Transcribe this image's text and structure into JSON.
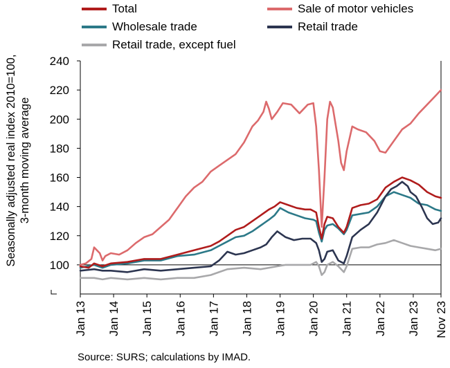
{
  "chart_data": {
    "type": "line",
    "ylabel_line1": "Seasonally adjusted real index 2010=100,",
    "ylabel_line2": "3-month moving average",
    "source": "Source: SURS; calculations by IMAD.",
    "ylim": [
      80,
      240
    ],
    "yticks": [
      100,
      120,
      140,
      160,
      180,
      200,
      220,
      240
    ],
    "ytick_labels": [
      "100",
      "120",
      "140",
      "160",
      "180",
      "200",
      "220",
      "240"
    ],
    "xlim": [
      "2013-01",
      "2023-11"
    ],
    "xticks": [
      "2013-01",
      "2014-01",
      "2015-01",
      "2016-01",
      "2017-01",
      "2018-01",
      "2019-01",
      "2020-01",
      "2021-01",
      "2022-01",
      "2023-01",
      "2023-11"
    ],
    "xtick_labels": [
      "Jan 13",
      "Jan 14",
      "Jan 15",
      "Jan 16",
      "Jan 17",
      "Jan 18",
      "Jan 19",
      "Jan 20",
      "Jan 21",
      "Jan 22",
      "Jan 23",
      "Nov 23"
    ],
    "reference_line": 100,
    "grid": false,
    "legend_position": "top",
    "series": [
      {
        "name": "Sale of motor vehicles",
        "color": "#dc6a6c",
        "points": [
          [
            "2013-01",
            100
          ],
          [
            "2013-03",
            101
          ],
          [
            "2013-05",
            104
          ],
          [
            "2013-06",
            112
          ],
          [
            "2013-07",
            110
          ],
          [
            "2013-08",
            108
          ],
          [
            "2013-09",
            103
          ],
          [
            "2013-10",
            106
          ],
          [
            "2013-12",
            108
          ],
          [
            "2014-03",
            107
          ],
          [
            "2014-06",
            110
          ],
          [
            "2014-09",
            115
          ],
          [
            "2014-12",
            119
          ],
          [
            "2015-03",
            121
          ],
          [
            "2015-06",
            126
          ],
          [
            "2015-09",
            131
          ],
          [
            "2015-12",
            139
          ],
          [
            "2016-03",
            147
          ],
          [
            "2016-06",
            153
          ],
          [
            "2016-09",
            157
          ],
          [
            "2016-12",
            164
          ],
          [
            "2017-03",
            168
          ],
          [
            "2017-06",
            172
          ],
          [
            "2017-09",
            176
          ],
          [
            "2017-12",
            184
          ],
          [
            "2018-03",
            195
          ],
          [
            "2018-05",
            199
          ],
          [
            "2018-07",
            205
          ],
          [
            "2018-08",
            212
          ],
          [
            "2018-09",
            207
          ],
          [
            "2018-10",
            200
          ],
          [
            "2018-12",
            205
          ],
          [
            "2019-02",
            211
          ],
          [
            "2019-05",
            210
          ],
          [
            "2019-08",
            204
          ],
          [
            "2019-11",
            210
          ],
          [
            "2020-01",
            211
          ],
          [
            "2020-02",
            195
          ],
          [
            "2020-03",
            165
          ],
          [
            "2020-04",
            126
          ],
          [
            "2020-05",
            160
          ],
          [
            "2020-06",
            200
          ],
          [
            "2020-07",
            212
          ],
          [
            "2020-08",
            208
          ],
          [
            "2020-10",
            185
          ],
          [
            "2020-11",
            170
          ],
          [
            "2020-12",
            165
          ],
          [
            "2021-01",
            178
          ],
          [
            "2021-03",
            195
          ],
          [
            "2021-05",
            193
          ],
          [
            "2021-08",
            191
          ],
          [
            "2021-11",
            185
          ],
          [
            "2022-01",
            178
          ],
          [
            "2022-03",
            177
          ],
          [
            "2022-06",
            185
          ],
          [
            "2022-09",
            193
          ],
          [
            "2022-12",
            197
          ],
          [
            "2023-03",
            204
          ],
          [
            "2023-06",
            210
          ],
          [
            "2023-09",
            216
          ],
          [
            "2023-11",
            220
          ]
        ]
      },
      {
        "name": "Total",
        "color": "#b01c1c",
        "points": [
          [
            "2013-01",
            99
          ],
          [
            "2013-04",
            98
          ],
          [
            "2013-06",
            101
          ],
          [
            "2013-09",
            99
          ],
          [
            "2013-12",
            101
          ],
          [
            "2014-06",
            102
          ],
          [
            "2014-12",
            104
          ],
          [
            "2015-06",
            104
          ],
          [
            "2015-12",
            107
          ],
          [
            "2016-06",
            110
          ],
          [
            "2016-12",
            113
          ],
          [
            "2017-03",
            116
          ],
          [
            "2017-06",
            120
          ],
          [
            "2017-09",
            124
          ],
          [
            "2017-12",
            126
          ],
          [
            "2018-03",
            130
          ],
          [
            "2018-06",
            134
          ],
          [
            "2018-09",
            138
          ],
          [
            "2018-11",
            140
          ],
          [
            "2019-01",
            143
          ],
          [
            "2019-04",
            141
          ],
          [
            "2019-07",
            139
          ],
          [
            "2019-10",
            138
          ],
          [
            "2019-12",
            138
          ],
          [
            "2020-01",
            137
          ],
          [
            "2020-02",
            136
          ],
          [
            "2020-03",
            126
          ],
          [
            "2020-04",
            118
          ],
          [
            "2020-05",
            128
          ],
          [
            "2020-06",
            133
          ],
          [
            "2020-08",
            132
          ],
          [
            "2020-10",
            126
          ],
          [
            "2020-12",
            122
          ],
          [
            "2021-01",
            126
          ],
          [
            "2021-03",
            139
          ],
          [
            "2021-06",
            141
          ],
          [
            "2021-09",
            142
          ],
          [
            "2021-12",
            145
          ],
          [
            "2022-03",
            153
          ],
          [
            "2022-06",
            157
          ],
          [
            "2022-09",
            160
          ],
          [
            "2022-12",
            158
          ],
          [
            "2023-03",
            155
          ],
          [
            "2023-06",
            150
          ],
          [
            "2023-09",
            147
          ],
          [
            "2023-11",
            146
          ]
        ]
      },
      {
        "name": "Wholesale trade",
        "color": "#2c7988",
        "points": [
          [
            "2013-01",
            98
          ],
          [
            "2013-06",
            100
          ],
          [
            "2013-09",
            98
          ],
          [
            "2013-12",
            100
          ],
          [
            "2014-06",
            101
          ],
          [
            "2014-12",
            103
          ],
          [
            "2015-06",
            103
          ],
          [
            "2015-12",
            106
          ],
          [
            "2016-06",
            107
          ],
          [
            "2016-12",
            110
          ],
          [
            "2017-03",
            113
          ],
          [
            "2017-06",
            116
          ],
          [
            "2017-09",
            119
          ],
          [
            "2017-12",
            120
          ],
          [
            "2018-03",
            123
          ],
          [
            "2018-06",
            127
          ],
          [
            "2018-09",
            131
          ],
          [
            "2018-11",
            134
          ],
          [
            "2019-01",
            139
          ],
          [
            "2019-04",
            136
          ],
          [
            "2019-07",
            134
          ],
          [
            "2019-10",
            132
          ],
          [
            "2020-01",
            131
          ],
          [
            "2020-02",
            130
          ],
          [
            "2020-03",
            122
          ],
          [
            "2020-04",
            116
          ],
          [
            "2020-05",
            124
          ],
          [
            "2020-06",
            127
          ],
          [
            "2020-08",
            128
          ],
          [
            "2020-10",
            125
          ],
          [
            "2020-12",
            121
          ],
          [
            "2021-01",
            124
          ],
          [
            "2021-03",
            134
          ],
          [
            "2021-06",
            135
          ],
          [
            "2021-09",
            136
          ],
          [
            "2021-12",
            140
          ],
          [
            "2022-03",
            147
          ],
          [
            "2022-06",
            150
          ],
          [
            "2022-09",
            148
          ],
          [
            "2022-12",
            146
          ],
          [
            "2023-03",
            142
          ],
          [
            "2023-06",
            141
          ],
          [
            "2023-09",
            138
          ],
          [
            "2023-11",
            137
          ]
        ]
      },
      {
        "name": "Retail trade",
        "color": "#2c3550",
        "points": [
          [
            "2013-01",
            96
          ],
          [
            "2013-06",
            97
          ],
          [
            "2013-09",
            96
          ],
          [
            "2013-12",
            96
          ],
          [
            "2014-06",
            95
          ],
          [
            "2014-12",
            97
          ],
          [
            "2015-06",
            96
          ],
          [
            "2015-12",
            97
          ],
          [
            "2016-06",
            98
          ],
          [
            "2016-12",
            99
          ],
          [
            "2017-03",
            103
          ],
          [
            "2017-06",
            109
          ],
          [
            "2017-09",
            107
          ],
          [
            "2017-12",
            108
          ],
          [
            "2018-03",
            110
          ],
          [
            "2018-06",
            112
          ],
          [
            "2018-08",
            114
          ],
          [
            "2018-10",
            119
          ],
          [
            "2018-12",
            123
          ],
          [
            "2019-03",
            119
          ],
          [
            "2019-06",
            117
          ],
          [
            "2019-09",
            118
          ],
          [
            "2019-12",
            118
          ],
          [
            "2020-02",
            115
          ],
          [
            "2020-03",
            110
          ],
          [
            "2020-04",
            102
          ],
          [
            "2020-05",
            104
          ],
          [
            "2020-06",
            109
          ],
          [
            "2020-08",
            110
          ],
          [
            "2020-10",
            103
          ],
          [
            "2020-12",
            101
          ],
          [
            "2021-01",
            106
          ],
          [
            "2021-03",
            119
          ],
          [
            "2021-06",
            124
          ],
          [
            "2021-09",
            128
          ],
          [
            "2021-12",
            136
          ],
          [
            "2022-03",
            147
          ],
          [
            "2022-05",
            152
          ],
          [
            "2022-07",
            154
          ],
          [
            "2022-09",
            157
          ],
          [
            "2022-11",
            154
          ],
          [
            "2022-12",
            150
          ],
          [
            "2023-02",
            147
          ],
          [
            "2023-04",
            140
          ],
          [
            "2023-06",
            132
          ],
          [
            "2023-08",
            128
          ],
          [
            "2023-10",
            129
          ],
          [
            "2023-11",
            132
          ]
        ]
      },
      {
        "name": "Retail trade, except fuel",
        "color": "#a8a8aa",
        "points": [
          [
            "2013-01",
            91
          ],
          [
            "2013-06",
            91
          ],
          [
            "2013-09",
            90
          ],
          [
            "2013-12",
            91
          ],
          [
            "2014-06",
            90
          ],
          [
            "2014-12",
            91
          ],
          [
            "2015-06",
            90
          ],
          [
            "2015-12",
            91
          ],
          [
            "2016-06",
            91
          ],
          [
            "2016-12",
            93
          ],
          [
            "2017-03",
            95
          ],
          [
            "2017-06",
            97
          ],
          [
            "2017-12",
            98
          ],
          [
            "2018-06",
            97
          ],
          [
            "2018-12",
            99
          ],
          [
            "2019-03",
            100
          ],
          [
            "2019-06",
            100
          ],
          [
            "2019-12",
            100
          ],
          [
            "2020-02",
            102
          ],
          [
            "2020-03",
            99
          ],
          [
            "2020-04",
            93
          ],
          [
            "2020-05",
            95
          ],
          [
            "2020-06",
            100
          ],
          [
            "2020-08",
            102
          ],
          [
            "2020-10",
            99
          ],
          [
            "2020-12",
            95
          ],
          [
            "2021-01",
            99
          ],
          [
            "2021-03",
            111
          ],
          [
            "2021-06",
            112
          ],
          [
            "2021-09",
            112
          ],
          [
            "2021-12",
            114
          ],
          [
            "2022-03",
            115
          ],
          [
            "2022-06",
            117
          ],
          [
            "2022-09",
            115
          ],
          [
            "2022-12",
            113
          ],
          [
            "2023-03",
            112
          ],
          [
            "2023-06",
            111
          ],
          [
            "2023-09",
            110
          ],
          [
            "2023-11",
            111
          ]
        ]
      }
    ],
    "legend_order": [
      "Total",
      "Sale of motor vehicles",
      "Wholesale trade",
      "Retail trade",
      "Retail trade, except fuel"
    ]
  }
}
